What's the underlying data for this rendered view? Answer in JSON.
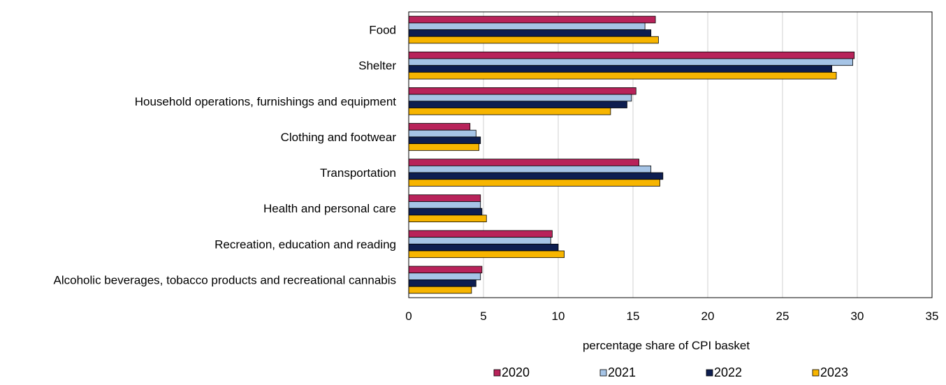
{
  "chart_data": {
    "type": "bar",
    "orientation": "horizontal",
    "xlabel": "percentage share of CPI basket",
    "xlim": [
      0,
      35
    ],
    "xticks": [
      "0",
      "5",
      "10",
      "15",
      "20",
      "25",
      "30",
      "35"
    ],
    "grid": "vertical",
    "legend_placement": "bottom",
    "categories": [
      "Food",
      "Shelter",
      "Household operations, furnishings and equipment",
      "Clothing and footwear",
      "Transportation",
      "Health and personal care",
      "Recreation, education and reading",
      "Alcoholic beverages, tobacco products and recreational cannabis"
    ],
    "series": [
      {
        "name": "2020",
        "color": "#b8235a",
        "values": [
          16.5,
          29.8,
          15.2,
          4.1,
          15.4,
          4.8,
          9.6,
          4.9
        ]
      },
      {
        "name": "2021",
        "color": "#a6c4e6",
        "values": [
          15.8,
          29.7,
          14.9,
          4.5,
          16.2,
          4.8,
          9.5,
          4.8
        ]
      },
      {
        "name": "2022",
        "color": "#0e1e50",
        "values": [
          16.2,
          28.3,
          14.6,
          4.8,
          17.0,
          4.9,
          10.0,
          4.5
        ]
      },
      {
        "name": "2023",
        "color": "#f7b500",
        "values": [
          16.7,
          28.6,
          13.5,
          4.7,
          16.8,
          5.2,
          10.4,
          4.2
        ]
      }
    ]
  }
}
